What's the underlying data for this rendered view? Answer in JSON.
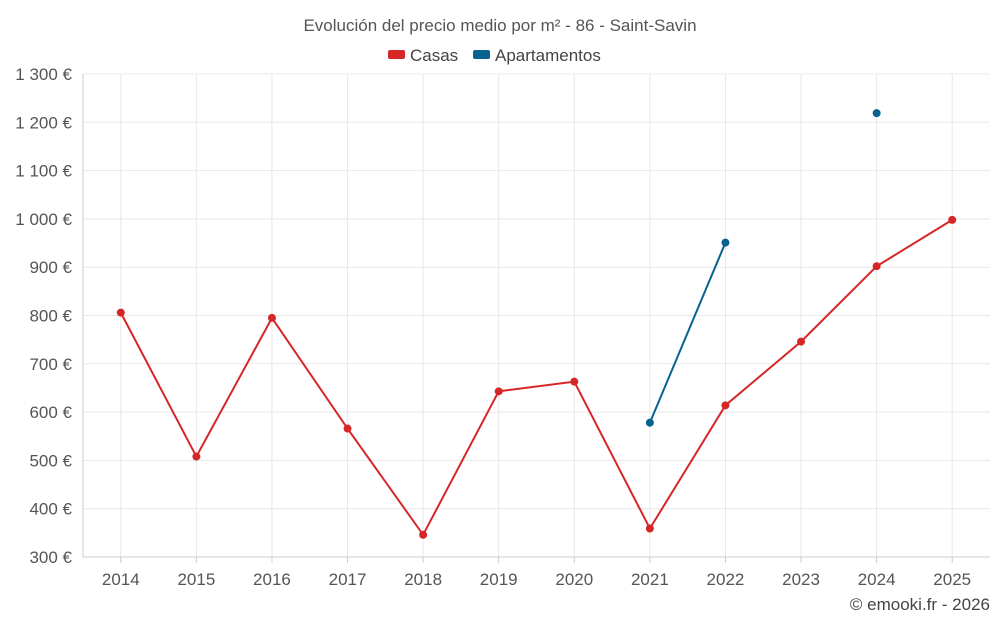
{
  "chart_data": {
    "type": "line",
    "title": "Evolución del precio medio por m² - 86 - Saint-Savin",
    "x": [
      "2014",
      "2015",
      "2016",
      "2017",
      "2018",
      "2019",
      "2020",
      "2021",
      "2022",
      "2023",
      "2024",
      "2025"
    ],
    "y_ticks": [
      "300 €",
      "400 €",
      "500 €",
      "600 €",
      "700 €",
      "800 €",
      "900 €",
      "1 000 €",
      "1 100 €",
      "1 200 €",
      "1 300 €"
    ],
    "ylim": [
      300,
      1300
    ],
    "grid": true,
    "legend_position": "top-center",
    "series": [
      {
        "name": "Casas",
        "color": "#d62728",
        "values": [
          806,
          508,
          795,
          566,
          346,
          643,
          663,
          359,
          614,
          746,
          902,
          998
        ]
      },
      {
        "name": "Apartamentos",
        "color": "#08628f",
        "values": [
          null,
          null,
          null,
          null,
          null,
          null,
          null,
          578,
          951,
          null,
          1219,
          null
        ]
      }
    ]
  },
  "credit": "© emooki.fr - 2026"
}
